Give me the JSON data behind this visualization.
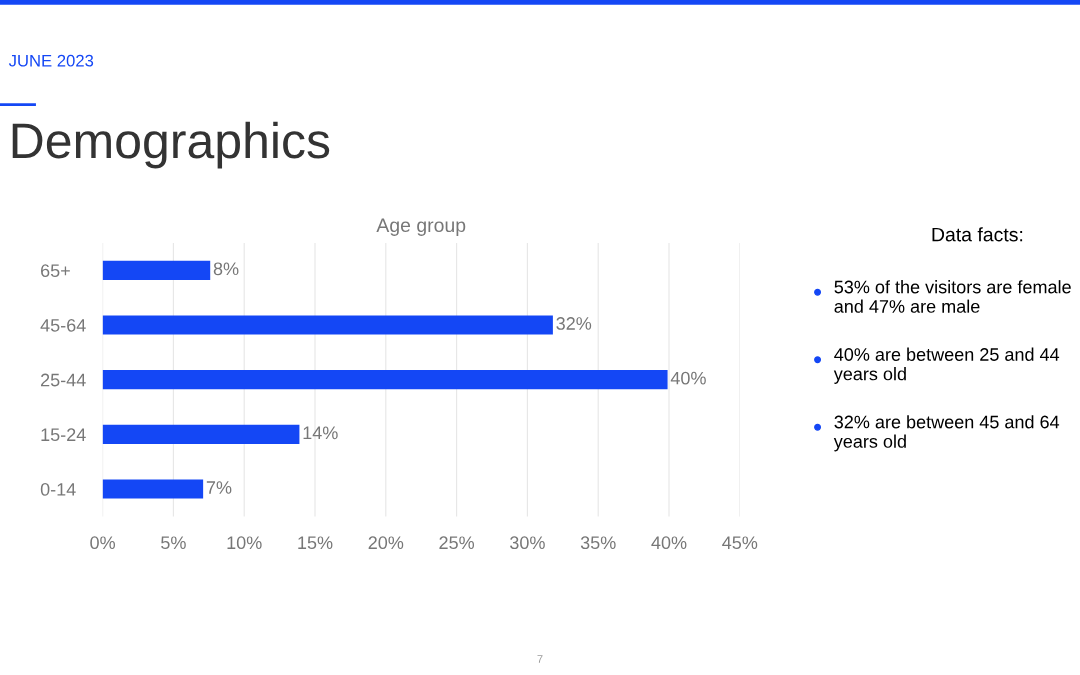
{
  "chart_data": {
    "type": "bar",
    "orientation": "horizontal",
    "title": "Demographics",
    "subtitle": "JUNE 2023",
    "categories": [
      "65+",
      "45-64",
      "25-44",
      "15-24",
      "0-14"
    ],
    "values": [
      7.6,
      31.8,
      39.9,
      13.9,
      7.1
    ],
    "value_labels": [
      "8%",
      "32%",
      "40%",
      "14%",
      "7%"
    ],
    "color": "#1447f5",
    "xlim": [
      0,
      45
    ],
    "xticks": [
      {
        "value": 0,
        "label": "0%"
      },
      {
        "value": 5,
        "label": "5%"
      },
      {
        "value": 10,
        "label": "10%"
      },
      {
        "value": 15,
        "label": "15%"
      },
      {
        "value": 20,
        "label": "20%"
      },
      {
        "value": 25,
        "label": "25%"
      },
      {
        "value": 30,
        "label": "30%"
      },
      {
        "value": 35,
        "label": "35%"
      },
      {
        "value": 40,
        "label": "40%"
      },
      {
        "value": 45,
        "label": "45%"
      }
    ],
    "grid": "x",
    "annotations": [
      "Age group",
      "Data facts:",
      "53% of the visitors are female and 47% are male",
      "40% are between 25 and 44 years old",
      "32% are between 45 and 64 years old",
      "7"
    ]
  }
}
